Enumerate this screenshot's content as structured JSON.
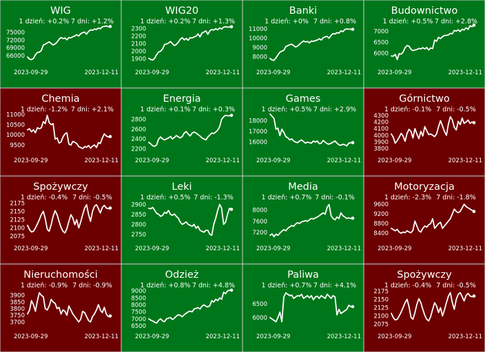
{
  "colors": {
    "up": "#00761a",
    "down": "#6c0000",
    "line": "#ffffff",
    "text": "#ffffff"
  },
  "chart_data": [
    {
      "type": "line",
      "title": "WIG",
      "day_change": "1 dzień: +0.2%",
      "week_change": "7 dni: +1.2%",
      "x_start": "2023-09-29",
      "x_end": "2023-12-11",
      "trend": "up",
      "yticks": [
        66000,
        69000,
        72000,
        75000
      ],
      "ylim": [
        63000,
        78500
      ],
      "values": [
        65400,
        64600,
        64400,
        64900,
        66300,
        67200,
        67300,
        68000,
        70100,
        70400,
        70900,
        71300,
        70700,
        70100,
        70500,
        71200,
        72300,
        73000,
        72600,
        72800,
        72100,
        73000,
        72900,
        73300,
        73600,
        74100,
        73600,
        74500,
        74900,
        75100,
        74300,
        75400,
        76000,
        75800,
        76300,
        76100,
        76700,
        76400,
        77200,
        77300,
        77500,
        77200,
        77300
      ]
    },
    {
      "type": "line",
      "title": "WIG20",
      "day_change": "1 dzień: +0.2%",
      "week_change": "7 dni: +1.3%",
      "x_start": "2023-09-29",
      "x_end": "2023-12-11",
      "trend": "up",
      "yticks": [
        1900,
        2000,
        2100,
        2200,
        2300
      ],
      "ylim": [
        1840,
        2370
      ],
      "values": [
        1905,
        1890,
        1882,
        1908,
        1955,
        1990,
        2000,
        2030,
        2090,
        2095,
        2110,
        2130,
        2100,
        2075,
        2090,
        2120,
        2160,
        2180,
        2150,
        2170,
        2145,
        2180,
        2175,
        2190,
        2200,
        2230,
        2190,
        2240,
        2255,
        2270,
        2225,
        2270,
        2290,
        2280,
        2300,
        2285,
        2310,
        2295,
        2320,
        2325,
        2320,
        2322,
        2325
      ]
    },
    {
      "type": "line",
      "title": "Banki",
      "day_change": "1 dzień: +0%",
      "week_change": "7 dni: +0.8%",
      "x_start": "2023-09-29",
      "x_end": "2023-12-11",
      "trend": "up",
      "yticks": [
        8000,
        9000,
        10000,
        11000
      ],
      "ylim": [
        7300,
        11600
      ],
      "values": [
        7820,
        7650,
        7620,
        7880,
        8200,
        8500,
        8600,
        8700,
        9100,
        9200,
        9300,
        9350,
        9200,
        9050,
        9150,
        9350,
        9550,
        9700,
        9600,
        9650,
        9500,
        9700,
        9650,
        9750,
        9800,
        9950,
        9800,
        10050,
        10150,
        10200,
        10000,
        10300,
        10500,
        10450,
        10600,
        10550,
        10800,
        10700,
        10950,
        11000,
        10980,
        10970,
        10960
      ]
    },
    {
      "type": "line",
      "title": "Budownictwo",
      "day_change": "1 dzień: +0.5%",
      "week_change": "7 dni: +2.8%",
      "x_start": "2023-09-29",
      "x_end": "2023-12-11",
      "trend": "up",
      "yticks": [
        6000,
        6500,
        7000
      ],
      "ylim": [
        5550,
        7350
      ],
      "values": [
        5880,
        5870,
        5950,
        5720,
        5980,
        5960,
        6050,
        6250,
        6350,
        6320,
        6180,
        6120,
        6150,
        6170,
        6220,
        6200,
        6250,
        6200,
        6260,
        6150,
        6240,
        6210,
        6600,
        6540,
        6720,
        6660,
        6750,
        6800,
        6810,
        6830,
        6900,
        6880,
        7030,
        7000,
        7060,
        6980,
        7090,
        7050,
        7150,
        7080,
        7240,
        7200,
        7270
      ]
    },
    {
      "type": "line",
      "title": "Chemia",
      "day_change": "1 dzień: -1.2%",
      "week_change": "7 dni: +2.1%",
      "x_start": "2023-09-29",
      "x_end": "2023-12-11",
      "trend": "down",
      "yticks": [
        9500,
        10000,
        10500,
        11000
      ],
      "ylim": [
        9200,
        11150
      ],
      "values": [
        10250,
        10300,
        10150,
        10250,
        10100,
        10350,
        10300,
        10350,
        10650,
        10550,
        10950,
        10600,
        10500,
        10550,
        9800,
        9850,
        9600,
        9650,
        9900,
        10050,
        10100,
        9550,
        9500,
        9680,
        9640,
        9580,
        9430,
        9380,
        9330,
        9430,
        9400,
        9480,
        9350,
        9450,
        9510,
        9380,
        9620,
        9580,
        9850,
        10050,
        9950,
        9900,
        9920
      ]
    },
    {
      "type": "line",
      "title": "Energia",
      "day_change": "1 dzień: +0.1%",
      "week_change": "7 dni: +0.3%",
      "x_start": "2023-09-29",
      "x_end": "2023-12-11",
      "trend": "up",
      "yticks": [
        2200,
        2400,
        2600,
        2800
      ],
      "ylim": [
        2150,
        2960
      ],
      "values": [
        2330,
        2300,
        2260,
        2250,
        2280,
        2400,
        2440,
        2400,
        2380,
        2400,
        2420,
        2450,
        2400,
        2430,
        2470,
        2440,
        2420,
        2450,
        2520,
        2550,
        2500,
        2460,
        2520,
        2540,
        2520,
        2490,
        2460,
        2420,
        2400,
        2380,
        2440,
        2480,
        2520,
        2510,
        2540,
        2580,
        2650,
        2800,
        2850,
        2880,
        2870,
        2870,
        2880
      ]
    },
    {
      "type": "line",
      "title": "Games",
      "day_change": "1 dzień: +0.5%",
      "week_change": "7 dni: +2.9%",
      "x_start": "2023-09-29",
      "x_end": "2023-12-11",
      "trend": "up",
      "yticks": [
        16000,
        17000,
        18000
      ],
      "ylim": [
        15150,
        18850
      ],
      "values": [
        18600,
        18400,
        18200,
        17200,
        17300,
        16600,
        17200,
        16900,
        16500,
        16400,
        16200,
        16300,
        16100,
        16000,
        15950,
        16100,
        16200,
        16050,
        15900,
        16000,
        15950,
        15900,
        16100,
        16000,
        16100,
        15850,
        15900,
        16150,
        16000,
        15850,
        15800,
        15900,
        16000,
        16100,
        15900,
        15750,
        15700,
        15800,
        15750,
        15650,
        15900,
        15950,
        15950
      ]
    },
    {
      "type": "line",
      "title": "Górnictwo",
      "day_change": "1 dzień: -0.1%",
      "week_change": "7 dni: -0.5%",
      "x_start": "2023-09-29",
      "x_end": "2023-12-11",
      "trend": "down",
      "yticks": [
        3800,
        3900,
        4000,
        4100,
        4200,
        4300
      ],
      "ylim": [
        3760,
        4360
      ],
      "values": [
        4020,
        3970,
        3880,
        3920,
        3970,
        4030,
        3990,
        3910,
        4030,
        4090,
        4060,
        3960,
        4100,
        4020,
        3950,
        4060,
        3990,
        4130,
        4070,
        4010,
        4020,
        4000,
        3980,
        4020,
        4130,
        4220,
        4140,
        4060,
        4000,
        4170,
        4280,
        4230,
        4120,
        4080,
        4210,
        4160,
        4260,
        4180,
        4200,
        4230,
        4180,
        4200,
        4190
      ]
    },
    {
      "type": "line",
      "title": "Spożywczy",
      "day_change": "1 dzień: -0.4%",
      "week_change": "7 dni: -0.5%",
      "x_start": "2023-09-29",
      "x_end": "2023-12-11",
      "trend": "down",
      "yticks": [
        2075,
        2100,
        2125,
        2150,
        2175
      ],
      "ylim": [
        2066,
        2186
      ],
      "values": [
        2108,
        2095,
        2088,
        2090,
        2100,
        2112,
        2125,
        2140,
        2150,
        2128,
        2096,
        2090,
        2110,
        2135,
        2152,
        2140,
        2120,
        2102,
        2090,
        2085,
        2098,
        2120,
        2140,
        2130,
        2110,
        2125,
        2100,
        2118,
        2140,
        2160,
        2170,
        2140,
        2120,
        2150,
        2165,
        2170,
        2158,
        2145,
        2162,
        2168,
        2160,
        2158,
        2160
      ]
    },
    {
      "type": "line",
      "title": "Leki",
      "day_change": "1 dzień: +0.5%",
      "week_change": "7 dni: -1.3%",
      "x_start": "2023-09-29",
      "x_end": "2023-12-11",
      "trend": "up",
      "yticks": [
        2750,
        2800,
        2850,
        2900
      ],
      "ylim": [
        2725,
        2925
      ],
      "values": [
        2880,
        2878,
        2885,
        2870,
        2855,
        2850,
        2840,
        2845,
        2860,
        2855,
        2870,
        2850,
        2845,
        2852,
        2840,
        2830,
        2810,
        2800,
        2805,
        2812,
        2800,
        2795,
        2790,
        2800,
        2780,
        2790,
        2770,
        2765,
        2760,
        2770,
        2770,
        2750,
        2745,
        2800,
        2830,
        2870,
        2900,
        2880,
        2800,
        2810,
        2850,
        2880,
        2875
      ]
    },
    {
      "type": "line",
      "title": "Media",
      "day_change": "1 dzień: +0.7%",
      "week_change": "7 dni: -0.1%",
      "x_start": "2023-09-29",
      "x_end": "2023-12-11",
      "trend": "up",
      "yticks": [
        7200,
        7600,
        8000
      ],
      "ylim": [
        6960,
        8380
      ],
      "values": [
        7100,
        7150,
        7050,
        7140,
        7100,
        7180,
        7250,
        7300,
        7260,
        7350,
        7400,
        7450,
        7420,
        7500,
        7550,
        7520,
        7580,
        7600,
        7620,
        7600,
        7650,
        7700,
        7680,
        7720,
        7750,
        7800,
        7850,
        7900,
        7850,
        8100,
        8200,
        7800,
        7700,
        7650,
        7750,
        7700,
        7900,
        7800,
        7750,
        7700,
        7720,
        7700,
        7710
      ]
    },
    {
      "type": "line",
      "title": "Motoryzacja",
      "day_change": "1 dzień: -2.3%",
      "week_change": "7 dni: -1.8%",
      "x_start": "2023-09-29",
      "x_end": "2023-12-11",
      "trend": "down",
      "yticks": [
        8400,
        8800,
        9200,
        9600
      ],
      "ylim": [
        8150,
        9800
      ],
      "values": [
        8600,
        8550,
        8500,
        8560,
        8450,
        8400,
        8450,
        8420,
        8500,
        8450,
        8420,
        8520,
        8900,
        8700,
        8500,
        8450,
        8600,
        8700,
        8650,
        8750,
        8800,
        9000,
        8600,
        8700,
        8800,
        8850,
        8600,
        8700,
        8800,
        8900,
        9000,
        9200,
        9400,
        9300,
        9250,
        9300,
        9450,
        9600,
        9500,
        9450,
        9400,
        9350,
        9300
      ]
    },
    {
      "type": "line",
      "title": "Nieruchomości",
      "day_change": "1 dzień: -0.9%",
      "week_change": "7 dni: -0.9%",
      "x_start": "2023-09-29",
      "x_end": "2023-12-11",
      "trend": "down",
      "yticks": [
        3700,
        3750,
        3800,
        3850,
        3900
      ],
      "ylim": [
        3660,
        3960
      ],
      "values": [
        3760,
        3790,
        3860,
        3830,
        3780,
        3860,
        3920,
        3900,
        3890,
        3800,
        3790,
        3820,
        3870,
        3850,
        3840,
        3800,
        3810,
        3760,
        3790,
        3780,
        3750,
        3820,
        3790,
        3760,
        3740,
        3720,
        3700,
        3720,
        3780,
        3770,
        3740,
        3710,
        3700,
        3740,
        3760,
        3790,
        3830,
        3790,
        3770,
        3810,
        3760,
        3740,
        3745
      ]
    },
    {
      "type": "line",
      "title": "Odzież",
      "day_change": "1 dzień: +0.8%",
      "week_change": "7 dni: +4.8%",
      "x_start": "2023-09-29",
      "x_end": "2023-12-11",
      "trend": "up",
      "yticks": [
        6500,
        7000,
        7500,
        8000,
        8500,
        9000
      ],
      "ylim": [
        6400,
        9250
      ],
      "values": [
        7000,
        6900,
        6850,
        6750,
        6700,
        6900,
        7000,
        6850,
        6800,
        7000,
        7050,
        7100,
        6950,
        7050,
        7200,
        7300,
        7250,
        7150,
        7300,
        7400,
        7500,
        7550,
        7500,
        7700,
        7750,
        7800,
        7700,
        7900,
        8000,
        7900,
        7850,
        7950,
        8300,
        8200,
        8400,
        8300,
        8500,
        8400,
        8900,
        8800,
        9000,
        9050,
        9050
      ]
    },
    {
      "type": "line",
      "title": "Paliwa",
      "day_change": "1 dzień: +0.7%",
      "week_change": "7 dni: +4.1%",
      "x_start": "2023-09-29",
      "x_end": "2023-12-11",
      "trend": "up",
      "yticks": [
        6000,
        6500
      ],
      "ylim": [
        5650,
        7100
      ],
      "values": [
        6000,
        5950,
        5900,
        5850,
        6000,
        6200,
        5850,
        6750,
        6900,
        6850,
        6800,
        6820,
        6700,
        6750,
        6800,
        6780,
        6850,
        6700,
        6750,
        6800,
        6720,
        6800,
        6650,
        6750,
        6780,
        6700,
        6800,
        6750,
        6700,
        6850,
        6780,
        6700,
        6800,
        6750,
        6100,
        6300,
        6150,
        6200,
        6250,
        6300,
        6450,
        6400,
        6400
      ]
    },
    {
      "type": "line",
      "title": "Spożywczy",
      "day_change": "1 dzień: -0.4%",
      "week_change": "7 dni: -0.5%",
      "x_start": "2023-09-29",
      "x_end": "2023-12-11",
      "trend": "down",
      "yticks": [
        2075,
        2100,
        2125,
        2150,
        2175
      ],
      "ylim": [
        2066,
        2186
      ],
      "values": [
        2108,
        2095,
        2088,
        2090,
        2100,
        2112,
        2125,
        2140,
        2150,
        2128,
        2096,
        2090,
        2110,
        2135,
        2152,
        2140,
        2120,
        2102,
        2090,
        2085,
        2098,
        2120,
        2140,
        2130,
        2110,
        2125,
        2100,
        2118,
        2140,
        2160,
        2170,
        2140,
        2120,
        2150,
        2165,
        2170,
        2158,
        2145,
        2162,
        2168,
        2160,
        2158,
        2160
      ]
    }
  ]
}
